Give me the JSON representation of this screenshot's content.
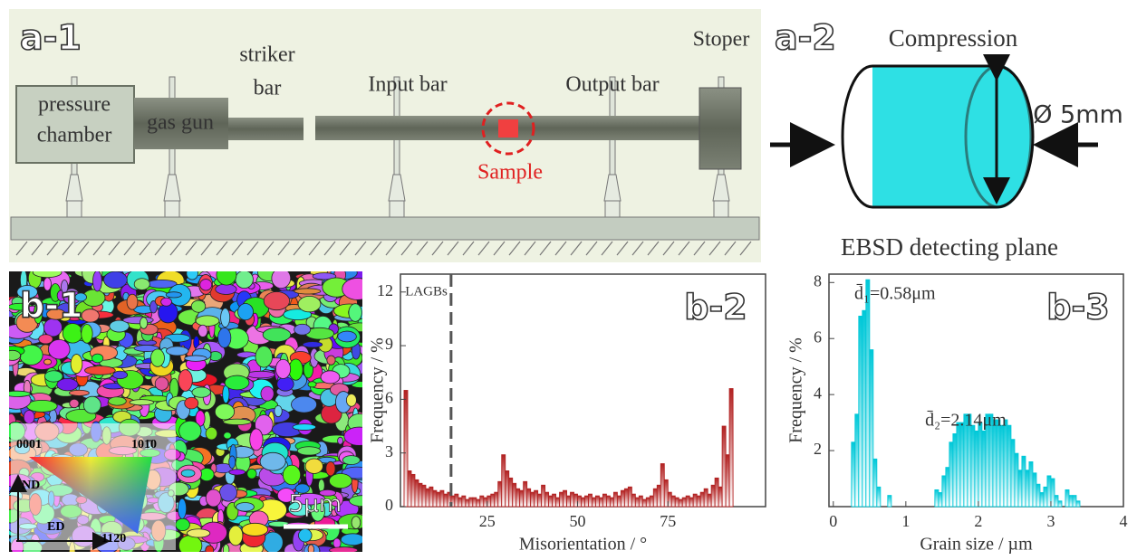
{
  "diagram": {
    "a1": {
      "label": "a-1",
      "pressure_chamber": [
        "pressure",
        "chamber"
      ],
      "gas_gun": "gas gun",
      "striker_bar": [
        "striker",
        "bar"
      ],
      "input_bar": "Input bar",
      "output_bar": "Output  bar",
      "stopper": "Stoper",
      "sample": "Sample"
    },
    "a2": {
      "label": "a-2",
      "compression": "Compression",
      "diameter": "Ø 5mm",
      "plane": "EBSD  detecting  plane"
    },
    "b1": {
      "label": "b-1",
      "legend": {
        "top_left": "0001",
        "top_right": "101̄0",
        "bottom": "112̄0",
        "nd": "ND",
        "ed": "ED"
      },
      "scale_bar": "5μm"
    }
  },
  "chart_data": [
    {
      "type": "histogram",
      "panel_label": "b-2",
      "color": "#b22222",
      "xlabel": "Misorientation / °",
      "ylabel": "Frequency / %",
      "xlim": [
        1,
        102
      ],
      "ylim": [
        0,
        13
      ],
      "xticks": [
        25,
        50,
        75
      ],
      "yticks": [
        0,
        3,
        6,
        9,
        12
      ],
      "annotation": {
        "text": "LAGBs",
        "x": 15
      },
      "bins": [
        2,
        3,
        4,
        5,
        6,
        7,
        8,
        9,
        10,
        11,
        12,
        13,
        14,
        15,
        16,
        17,
        18,
        19,
        20,
        21,
        22,
        23,
        24,
        25,
        26,
        27,
        28,
        29,
        30,
        31,
        32,
        33,
        34,
        35,
        36,
        37,
        38,
        39,
        40,
        41,
        42,
        43,
        44,
        45,
        46,
        47,
        48,
        49,
        50,
        51,
        52,
        53,
        54,
        55,
        56,
        57,
        58,
        59,
        60,
        61,
        62,
        63,
        64,
        65,
        66,
        67,
        68,
        69,
        70,
        71,
        72,
        73,
        74,
        75,
        76,
        77,
        78,
        79,
        80,
        81,
        82,
        83,
        84,
        85,
        86,
        87,
        88,
        89,
        90,
        91,
        92,
        93
      ],
      "values": [
        6.5,
        2.0,
        1.8,
        1.5,
        1.3,
        1.2,
        1.0,
        1.1,
        0.9,
        0.8,
        0.9,
        0.7,
        0.8,
        0.6,
        0.7,
        0.5,
        0.6,
        0.4,
        0.5,
        0.5,
        0.4,
        0.6,
        0.5,
        0.6,
        0.7,
        0.8,
        1.4,
        2.9,
        2.0,
        1.6,
        1.3,
        1.0,
        0.9,
        1.4,
        1.0,
        0.8,
        0.9,
        0.7,
        1.2,
        0.8,
        0.6,
        0.7,
        0.5,
        0.8,
        0.9,
        0.6,
        0.8,
        0.7,
        0.6,
        0.5,
        0.6,
        0.7,
        0.5,
        0.6,
        0.5,
        0.7,
        0.6,
        0.5,
        0.8,
        0.6,
        0.9,
        1.0,
        1.1,
        0.7,
        0.5,
        0.6,
        0.4,
        0.5,
        0.6,
        1.0,
        1.2,
        2.4,
        1.5,
        0.8,
        0.6,
        0.5,
        0.4,
        0.5,
        0.6,
        0.5,
        0.7,
        0.6,
        0.8,
        1.0,
        0.7,
        1.2,
        1.6,
        1.1,
        4.5,
        2.9,
        6.6
      ]
    },
    {
      "type": "histogram",
      "panel_label": "b-3",
      "color": "#00c8d8",
      "xlabel": "Grain size / µm",
      "ylabel": "Frequency / %",
      "xlim": [
        -0.06,
        4.0
      ],
      "ylim": [
        0,
        8.3
      ],
      "xticks": [
        0,
        1,
        2,
        3,
        4
      ],
      "yticks": [
        2,
        4,
        6,
        8
      ],
      "annotations": [
        {
          "text": "d̄₁=0.58μm",
          "x": 0.58
        },
        {
          "text": "d̄₂=2.14μm",
          "x": 2.14
        }
      ],
      "bins": [
        0.25,
        0.3,
        0.35,
        0.4,
        0.45,
        0.5,
        0.55,
        0.6,
        0.65,
        0.7,
        0.75,
        0.8,
        0.85,
        0.9,
        0.95,
        1.0,
        1.05,
        1.1,
        1.15,
        1.2,
        1.25,
        1.3,
        1.35,
        1.4,
        1.45,
        1.5,
        1.55,
        1.6,
        1.65,
        1.7,
        1.75,
        1.8,
        1.85,
        1.9,
        1.95,
        2.0,
        2.05,
        2.1,
        2.15,
        2.2,
        2.25,
        2.3,
        2.35,
        2.4,
        2.45,
        2.5,
        2.55,
        2.6,
        2.65,
        2.7,
        2.75,
        2.8,
        2.85,
        2.9,
        2.95,
        3.0,
        3.05,
        3.1,
        3.15,
        3.2,
        3.25,
        3.3,
        3.35,
        3.4,
        3.45
      ],
      "values": [
        2.3,
        3.3,
        6.8,
        7.0,
        8.1,
        5.6,
        1.7,
        0.7,
        0,
        0,
        0.4,
        0,
        0,
        0,
        0,
        0,
        0,
        0,
        0,
        0,
        0,
        0,
        0,
        0.6,
        0.5,
        1.1,
        1.4,
        2.3,
        2.6,
        3.0,
        3.0,
        3.3,
        3.3,
        2.9,
        2.7,
        3.0,
        2.7,
        3.3,
        3.3,
        3.1,
        3.1,
        2.9,
        3.1,
        2.9,
        2.4,
        1.9,
        1.3,
        1.8,
        1.3,
        1.6,
        1.2,
        0.8,
        0.5,
        0.7,
        1.1,
        1.0,
        0.4,
        0.2,
        0,
        0.6,
        0.4,
        0.4,
        0.2,
        0
      ]
    }
  ]
}
